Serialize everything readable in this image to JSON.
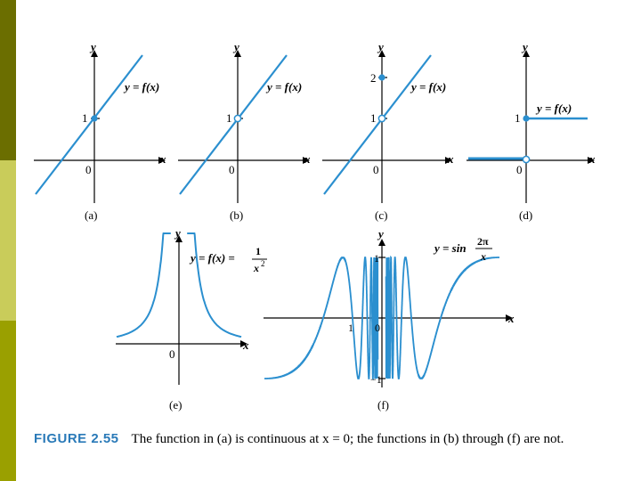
{
  "colors": {
    "sidebar": [
      "#6b6e00",
      "#c9cc5a",
      "#9aa000"
    ],
    "curve": "#2b8fcf",
    "axis": "#000000",
    "caption_label": "#2a7ab8"
  },
  "panels": {
    "a": {
      "label": "(a)",
      "curve": "y = f(x)",
      "x": "x",
      "y": "y",
      "tick1": "1",
      "origin": "0"
    },
    "b": {
      "label": "(b)",
      "curve": "y = f(x)",
      "x": "x",
      "y": "y",
      "tick1": "1",
      "origin": "0"
    },
    "c": {
      "label": "(c)",
      "curve": "y = f(x)",
      "x": "x",
      "y": "y",
      "tick1": "1",
      "tick2": "2",
      "origin": "0"
    },
    "d": {
      "label": "(d)",
      "curve": "y = f(x)",
      "x": "x",
      "y": "y",
      "tick1": "1",
      "origin": "0"
    },
    "e": {
      "label": "(e)",
      "curve": "y = f(x) =",
      "frac_num": "1",
      "frac_den": "x",
      "frac_exp": "2",
      "x": "x",
      "y": "y",
      "origin": "0"
    },
    "f": {
      "label": "(f)",
      "curve": "y = sin",
      "frac_num": "2π",
      "frac_den": "x",
      "x": "x",
      "y": "y",
      "tick_pos": "1",
      "tick_neg": "−1",
      "xtick": "1",
      "origin": "0"
    }
  },
  "caption": {
    "figure": "FIGURE 2.55",
    "text": "The function in (a) is continuous at x = 0; the functions in (b) through (f) are not."
  }
}
